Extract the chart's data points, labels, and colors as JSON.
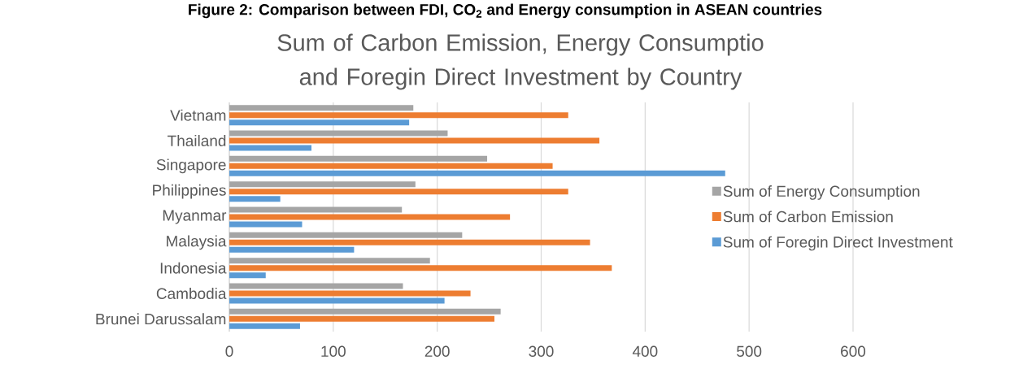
{
  "chart_data": {
    "type": "bar",
    "orientation": "horizontal",
    "title": "Sum of Carbon Emission, Energy Consumptio and Foregin Direct Investment by Country",
    "annotations": [
      "Figure 2: Comparison between FDI, CO$_{2}$ and Energy consumption in ASEAN countries"
    ],
    "categories": [
      "Vietnam",
      "Thailand",
      "Singapore",
      "Philippines",
      "Myanmar",
      "Malaysia",
      "Indonesia",
      "Cambodia",
      "Brunei Darussalam"
    ],
    "series": [
      {
        "name": "Sum of Foregin Direct Investment",
        "color": "#5b9bd5",
        "values": [
          173,
          79,
          477,
          49,
          70,
          120,
          35,
          207,
          68
        ]
      },
      {
        "name": "Sum of Carbon Emission",
        "color": "#ed7d31",
        "values": [
          326,
          356,
          311,
          326,
          270,
          347,
          368,
          232,
          255
        ]
      },
      {
        "name": "Sum of Energy Consumption",
        "color": "#a5a5a5",
        "values": [
          177,
          210,
          248,
          179,
          166,
          224,
          193,
          167,
          261
        ]
      }
    ],
    "xlim": [
      0,
      600
    ],
    "xticks": [
      0,
      100,
      200,
      300,
      400,
      500,
      600
    ],
    "grid": "x",
    "legend": "right"
  }
}
